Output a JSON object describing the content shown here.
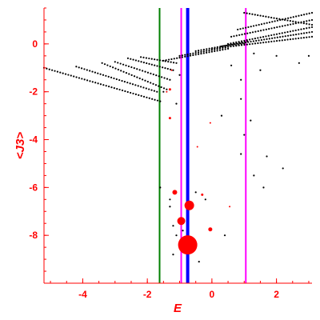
{
  "chart_data": {
    "type": "scatter",
    "xlabel": "E",
    "ylabel": "<J3>",
    "xlim": [
      -5.2,
      3.1
    ],
    "ylim": [
      -10.0,
      1.5
    ],
    "x_ticks": [
      {
        "value": -4,
        "label": "-4"
      },
      {
        "value": -2,
        "label": "-2"
      },
      {
        "value": 0,
        "label": "0"
      },
      {
        "value": 2,
        "label": "2"
      }
    ],
    "y_ticks": [
      {
        "value": 0,
        "label": "0"
      },
      {
        "value": -2,
        "label": "-2"
      },
      {
        "value": -4,
        "label": "-4"
      },
      {
        "value": -6,
        "label": "-6"
      },
      {
        "value": -8,
        "label": "-8"
      }
    ],
    "axis_color": "#ff0000",
    "grid": false,
    "vertical_lines": [
      {
        "x": -1.62,
        "color": "#008000"
      },
      {
        "x": -0.95,
        "color": "#ff00ff"
      },
      {
        "x": -0.75,
        "color": "#0000ff"
      },
      {
        "x": 1.05,
        "color": "#ff00ff"
      }
    ],
    "series": [
      {
        "color": "#000000",
        "marker": "small-dot",
        "bands": [
          {
            "x_start": -5.2,
            "x_end": -1.6,
            "y_start": -1.0,
            "y_end": -2.4
          },
          {
            "x_start": -4.2,
            "x_end": -1.7,
            "y_start": -0.95,
            "y_end": -2.0
          },
          {
            "x_start": -3.4,
            "x_end": -1.4,
            "y_start": -0.8,
            "y_end": -1.9
          },
          {
            "x_start": -3.0,
            "x_end": -1.3,
            "y_start": -0.75,
            "y_end": -1.5
          },
          {
            "x_start": -2.6,
            "x_end": -1.2,
            "y_start": -0.6,
            "y_end": -1.1
          },
          {
            "x_start": -2.2,
            "x_end": -1.1,
            "y_start": -0.55,
            "y_end": -0.8
          },
          {
            "x_start": -1.5,
            "x_end": 0.5,
            "y_start": -0.7,
            "y_end": -0.2
          },
          {
            "x_start": -1.0,
            "x_end": 1.0,
            "y_start": -0.5,
            "y_end": 0.0
          },
          {
            "x_start": -0.5,
            "x_end": 1.1,
            "y_start": -0.3,
            "y_end": 0.1
          },
          {
            "x_start": 0.0,
            "x_end": 3.1,
            "y_start": -0.2,
            "y_end": 0.3
          },
          {
            "x_start": 0.3,
            "x_end": 3.1,
            "y_start": -0.1,
            "y_end": 0.5
          },
          {
            "x_start": 0.5,
            "x_end": 3.1,
            "y_start": 0.0,
            "y_end": 0.7
          },
          {
            "x_start": 0.6,
            "x_end": 3.1,
            "y_start": 0.3,
            "y_end": 1.0
          },
          {
            "x_start": 0.8,
            "x_end": 3.1,
            "y_start": 0.6,
            "y_end": 1.3
          },
          {
            "x_start": 1.0,
            "x_end": 3.1,
            "y_start": 1.3,
            "y_end": 0.8
          }
        ],
        "points": [
          [
            0.6,
            -0.9
          ],
          [
            0.9,
            -1.5
          ],
          [
            0.9,
            -2.3
          ],
          [
            1.5,
            -1.1
          ],
          [
            1.2,
            -3.2
          ],
          [
            1.0,
            -3.8
          ],
          [
            0.3,
            -3.0
          ],
          [
            0.9,
            -4.6
          ],
          [
            1.7,
            -4.7
          ],
          [
            2.2,
            -5.2
          ],
          [
            1.3,
            -5.5
          ],
          [
            1.6,
            -6.0
          ],
          [
            -1.6,
            -6.0
          ],
          [
            -1.3,
            -6.5
          ],
          [
            -1.3,
            -6.8
          ],
          [
            -1.2,
            -7.6
          ],
          [
            -1.1,
            -8.0
          ],
          [
            -0.9,
            -7.8
          ],
          [
            -1.2,
            -8.8
          ],
          [
            -0.4,
            -9.1
          ],
          [
            0.4,
            -8.0
          ],
          [
            -0.2,
            -6.5
          ],
          [
            -0.5,
            -6.2
          ],
          [
            -1.1,
            -2.5
          ],
          [
            -1.5,
            -2.0
          ],
          [
            -1.0,
            -1.3
          ],
          [
            2.7,
            -0.8
          ],
          [
            3.0,
            -0.5
          ],
          [
            2.0,
            -0.5
          ],
          [
            1.3,
            -0.4
          ]
        ]
      },
      {
        "color": "#ff0000",
        "marker": "circle",
        "points": [
          {
            "x": -0.75,
            "y": -8.4,
            "r": 12
          },
          {
            "x": -0.95,
            "y": -7.4,
            "r": 5
          },
          {
            "x": -0.7,
            "y": -6.75,
            "r": 6
          },
          {
            "x": -1.15,
            "y": -6.2,
            "r": 3
          },
          {
            "x": -0.05,
            "y": -7.75,
            "r": 2.5
          },
          {
            "x": -0.3,
            "y": -6.3,
            "r": 1.5
          },
          {
            "x": 0.55,
            "y": -6.8,
            "r": 1
          },
          {
            "x": -1.3,
            "y": -3.1,
            "r": 1.5
          },
          {
            "x": -1.3,
            "y": -1.9,
            "r": 1.5
          },
          {
            "x": -1.4,
            "y": -2.0,
            "r": 1
          },
          {
            "x": -0.45,
            "y": -4.3,
            "r": 1
          },
          {
            "x": -0.05,
            "y": -3.3,
            "r": 1
          },
          {
            "x": -1.25,
            "y": -1.1,
            "r": 1
          }
        ]
      }
    ]
  }
}
